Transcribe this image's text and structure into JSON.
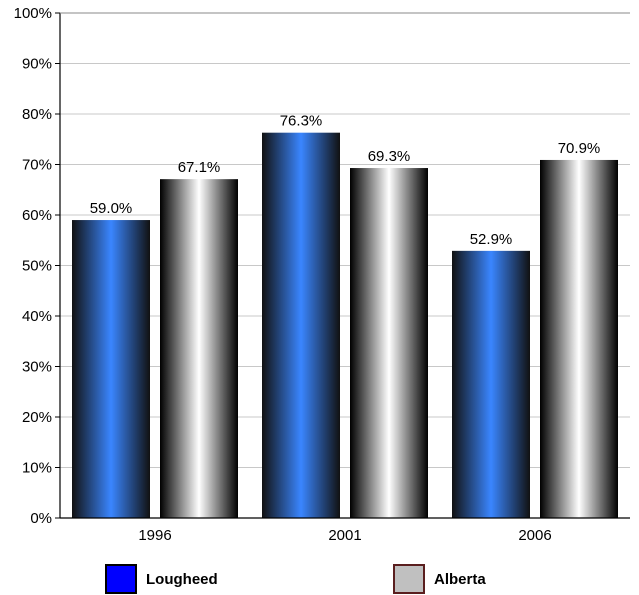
{
  "chart_data": {
    "type": "bar",
    "categories": [
      "1996",
      "2001",
      "2006"
    ],
    "series": [
      {
        "name": "Lougheed",
        "values": [
          59.0,
          76.3,
          52.9
        ],
        "labels": [
          "59.0%",
          "76.3%",
          "52.9%"
        ],
        "color": "#3a86ff",
        "legend_color": "#0000ff"
      },
      {
        "name": "Alberta",
        "values": [
          67.1,
          69.3,
          70.9
        ],
        "labels": [
          "67.1%",
          "69.3%",
          "70.9%"
        ],
        "color": "#ffffff",
        "legend_color": "#c0c0c0"
      }
    ],
    "ylim": [
      0,
      100
    ],
    "y_ticks": [
      "0%",
      "10%",
      "20%",
      "30%",
      "40%",
      "50%",
      "60%",
      "70%",
      "80%",
      "90%",
      "100%"
    ],
    "grid": true,
    "legend_position": "bottom",
    "title": "",
    "xlabel": "",
    "ylabel": ""
  }
}
